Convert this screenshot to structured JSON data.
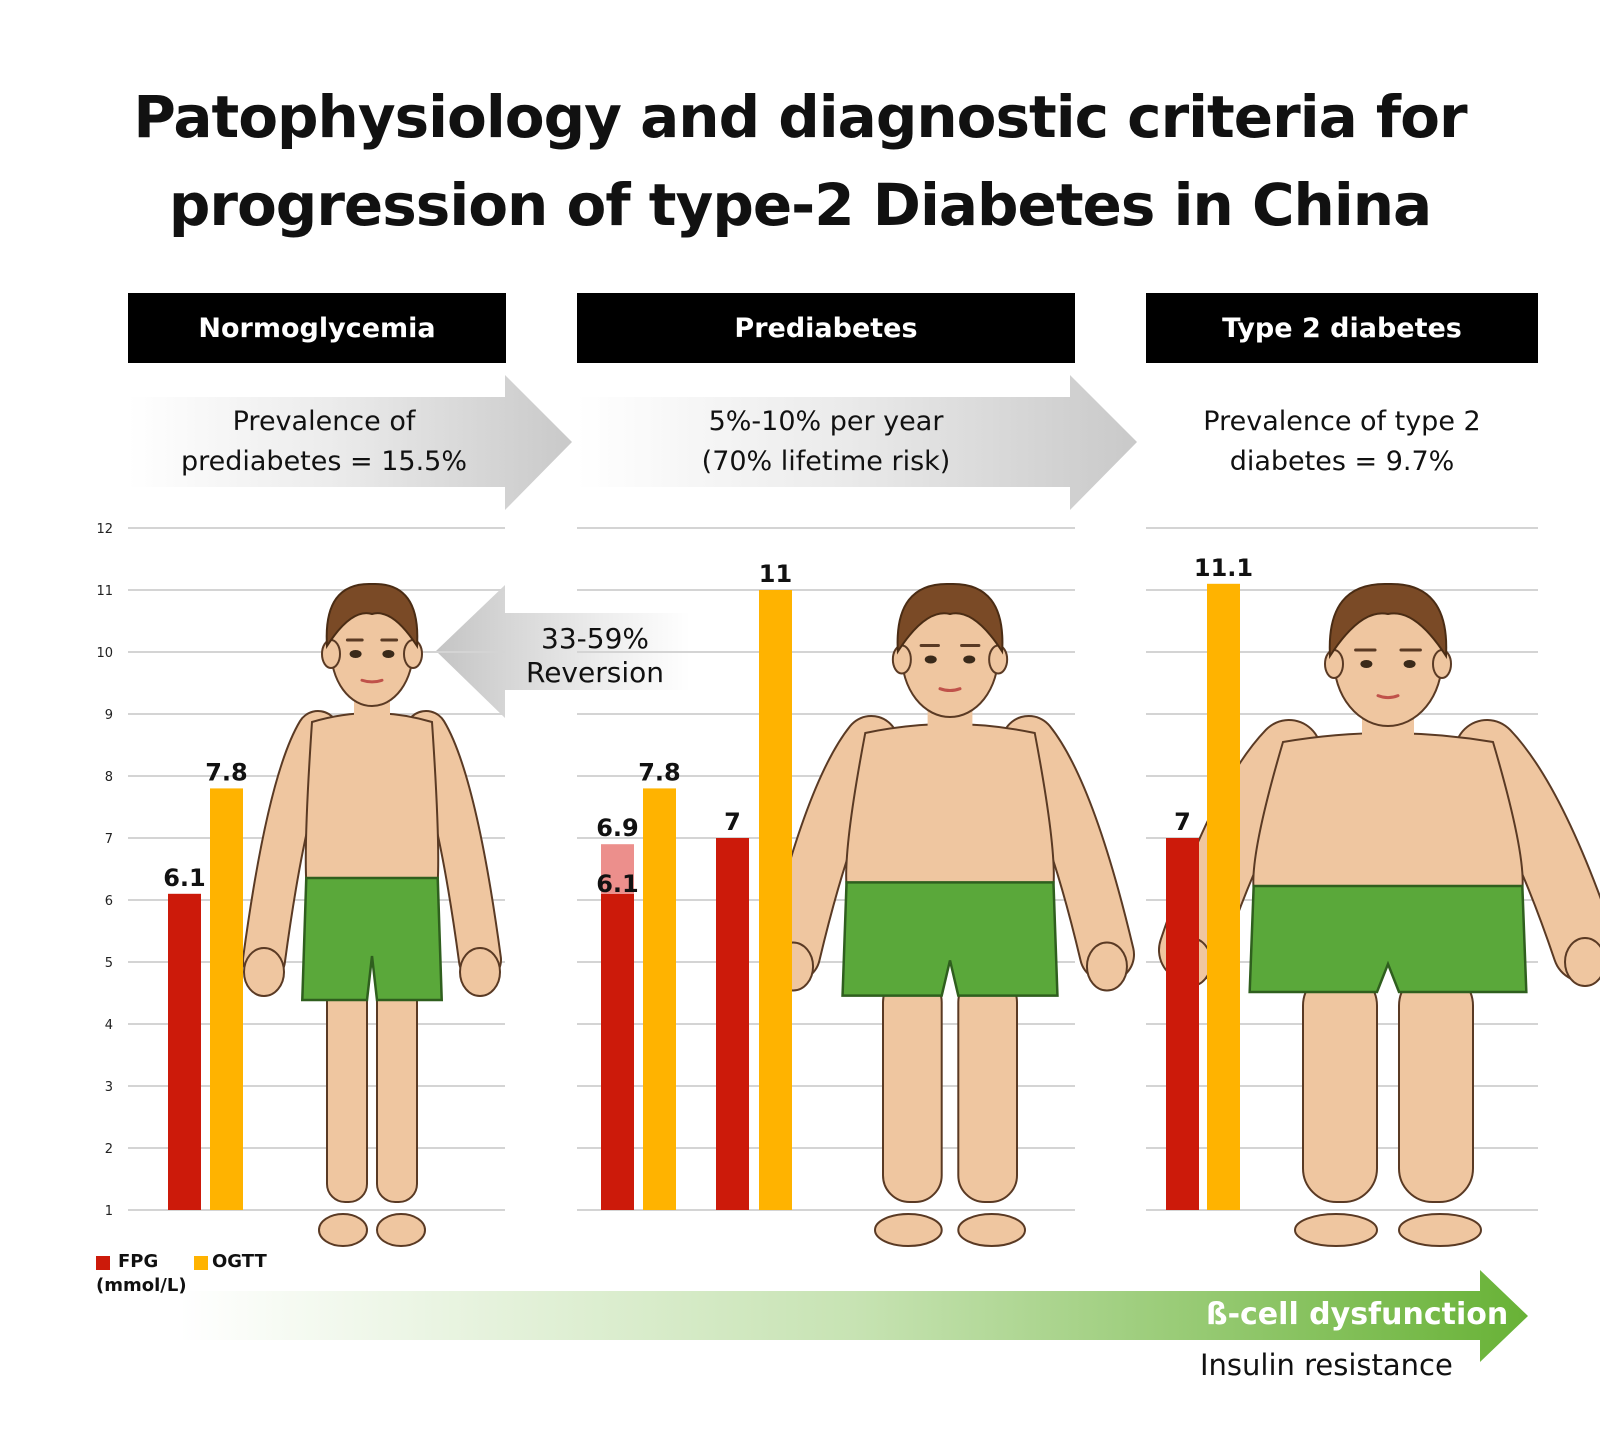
{
  "title": {
    "line1": "Patophysiology and diagnostic criteria for",
    "line2": "progression of type-2 Diabetes in China"
  },
  "stages": [
    {
      "label": "Normoglycemia",
      "note_line1": "Prevalence of",
      "note_line2": "prediabetes = 15.5%"
    },
    {
      "label": "Prediabetes",
      "note_line1": "5%-10% per year",
      "note_line2": "(70% lifetime risk)"
    },
    {
      "label": "Type 2 diabetes",
      "note_line1": "Prevalence of type 2",
      "note_line2": "diabetes = 9.7%"
    }
  ],
  "reversion": {
    "line1": "33-59%",
    "line2": "Reversion"
  },
  "legend": {
    "fpg": "FPG",
    "ogtt": "OGTT",
    "unit": "(mmol/L)"
  },
  "progression": {
    "beta": "ß-cell dysfunction",
    "insulin": "Insulin resistance"
  },
  "colors": {
    "fpg": "#cc1a0a",
    "ogtt": "#ffb300",
    "fpg_range": "#ec8f8c",
    "header_bg": "#000000",
    "gridline": "#d4d4d4",
    "arrow_gray": "#cfcfcf",
    "progress_green": "#6db33f",
    "skin": "#efc6a0",
    "shorts": "#5aa83a",
    "hair": "#7a4a26"
  },
  "chart_data": {
    "type": "bar",
    "ylabel": "",
    "ylim": [
      1,
      12
    ],
    "yticks": [
      "1",
      "2",
      "3",
      "4",
      "5",
      "6",
      "7",
      "8",
      "9",
      "10",
      "11",
      "12"
    ],
    "grid": true,
    "legend_position": "bottom-left",
    "series": [
      {
        "name": "FPG",
        "color": "#cc1a0a"
      },
      {
        "name": "OGTT",
        "color": "#ffb300"
      }
    ],
    "bars": [
      {
        "panel": 0,
        "series": "FPG",
        "value": 6.1,
        "label": "6.1"
      },
      {
        "panel": 0,
        "series": "OGTT",
        "value": 7.8,
        "label": "7.8"
      },
      {
        "panel": 1,
        "series": "FPG",
        "value": 6.1,
        "range_to": 6.9,
        "label": "6.1",
        "range_label": "6.9"
      },
      {
        "panel": 1,
        "series": "OGTT",
        "value": 7.8,
        "label": "7.8"
      },
      {
        "panel": 1,
        "series": "FPG",
        "value": 7,
        "label": "7"
      },
      {
        "panel": 1,
        "series": "OGTT",
        "value": 11,
        "label": "11"
      },
      {
        "panel": 2,
        "series": "FPG",
        "value": 7,
        "label": "7"
      },
      {
        "panel": 2,
        "series": "OGTT",
        "value": 11.1,
        "label": "11.1"
      }
    ]
  }
}
